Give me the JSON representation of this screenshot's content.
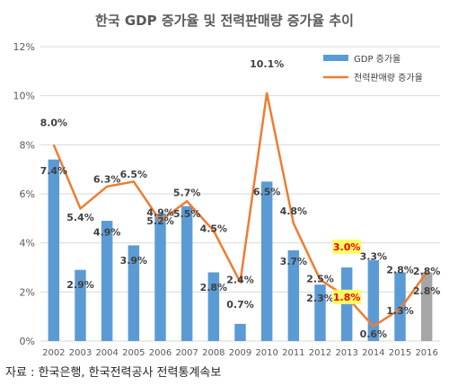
{
  "chart_data": {
    "type": "bar",
    "title": "한국 GDP 증가율 및 전력판매량 증가율 추이",
    "categories": [
      "2002",
      "2003",
      "2004",
      "2005",
      "2006",
      "2007",
      "2008",
      "2009",
      "2010",
      "2011",
      "2012",
      "2013",
      "2014",
      "2015",
      "2016"
    ],
    "series": [
      {
        "name": "GDP 증가율",
        "type": "bar",
        "color": "#5B9BD5",
        "values": [
          7.4,
          2.9,
          4.9,
          3.9,
          5.2,
          5.5,
          2.8,
          0.7,
          6.5,
          3.7,
          2.3,
          3.0,
          3.3,
          2.8,
          2.8
        ],
        "labels": [
          "7.4%",
          "2.9%",
          "4.9%",
          "3.9%",
          "5.2%",
          "5.5%",
          "2.8%",
          "0.7%",
          "6.5%",
          "3.7%",
          "2.3%",
          "3.0%",
          "3.3%",
          "2.8%",
          "2.8%"
        ]
      },
      {
        "name": "전력판매량 증가율",
        "type": "line",
        "color": "#ED7D31",
        "values": [
          8.0,
          5.4,
          6.3,
          6.5,
          4.9,
          5.7,
          4.5,
          2.4,
          10.1,
          4.8,
          2.5,
          1.8,
          0.6,
          1.3,
          2.8
        ],
        "labels": [
          "8.0%",
          "5.4%",
          "6.3%",
          "6.5%",
          "4.9%",
          "5.7%",
          "4.5%",
          "2.4%",
          "10.1%",
          "4.8%",
          "2.5%",
          "1.8%",
          "0.6%",
          "1.3%",
          "2.8%"
        ]
      }
    ],
    "y_ticks": [
      "0%",
      "2%",
      "4%",
      "6%",
      "8%",
      "10%",
      "12%"
    ],
    "ylim": [
      0,
      12
    ],
    "grid": true,
    "legend": "top-right",
    "highlight_color": "#FFFF66",
    "highlight_text_color": "#FF0000",
    "highlighted_category": "2013",
    "last_bar_color": "#A6A6A6",
    "source": "자료 : 한국은행, 한국전력공사 전력통계속보"
  }
}
